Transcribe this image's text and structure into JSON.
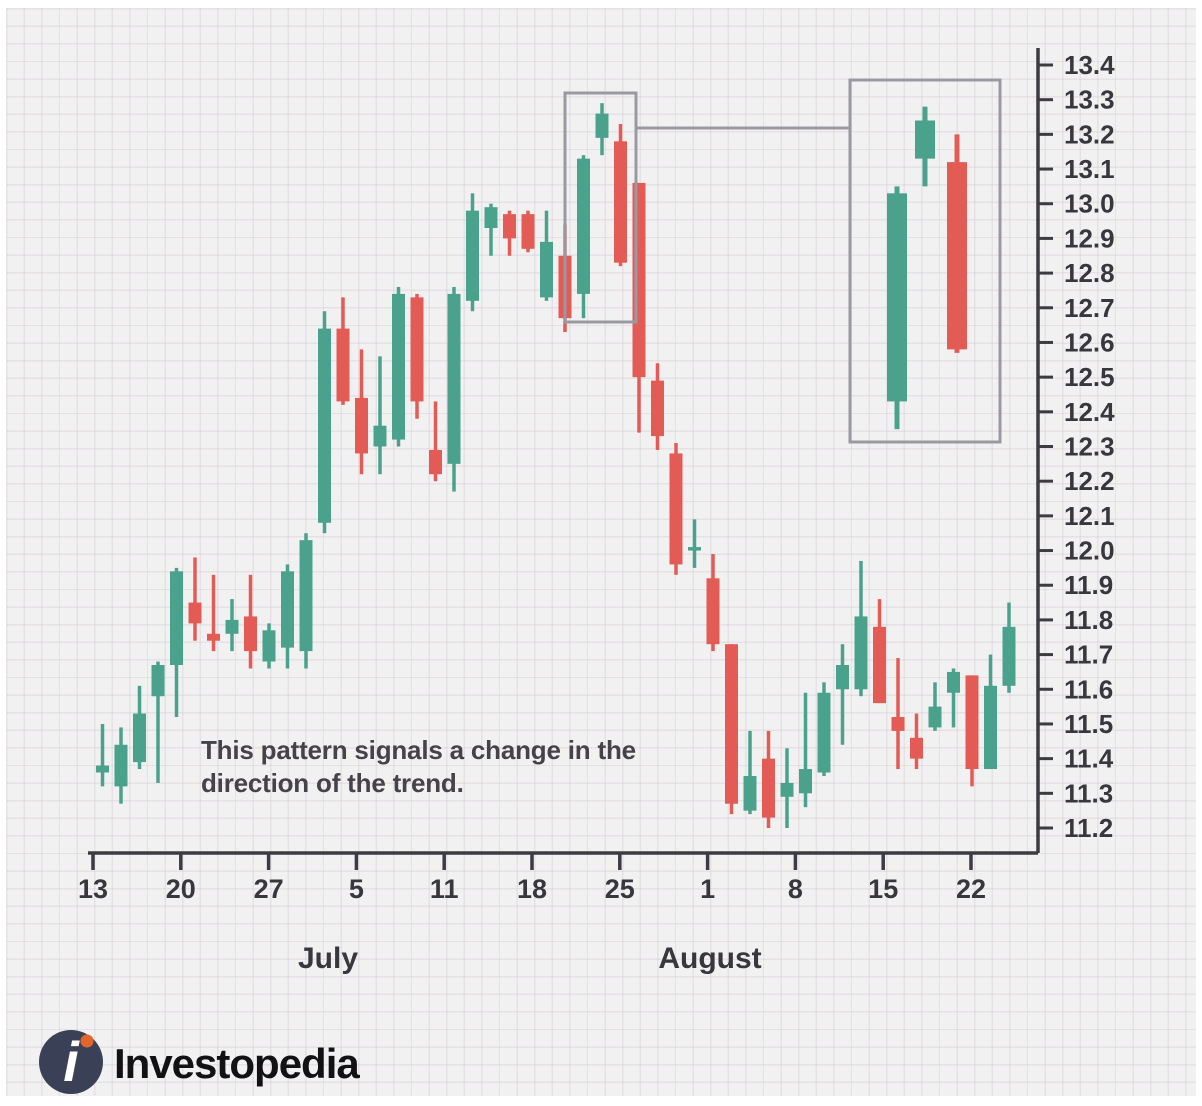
{
  "annotation": {
    "line1": "This pattern signals a change in the",
    "line2": "direction of the trend."
  },
  "logo": {
    "brand": "Investopedia",
    "mark_icon": "investopedia-i-icon",
    "mark_color": "#3a4156",
    "dot_color": "#e2662c"
  },
  "chart_data": {
    "type": "candlestick",
    "up_color": "#4aa28c",
    "down_color": "#e25c55",
    "axis_color": "#3c3b41",
    "highlight_box_color": "#9a99a1",
    "y_axis": {
      "min": 11.2,
      "max": 13.4,
      "step": 0.1,
      "tick_labels": [
        "13.4",
        "13.3",
        "13.2",
        "13.1",
        "13.0",
        "12.9",
        "12.8",
        "12.7",
        "12.6",
        "12.5",
        "12.4",
        "12.3",
        "12.2",
        "12.1",
        "12.0",
        "11.9",
        "11.8",
        "11.7",
        "11.6",
        "11.5",
        "11.4",
        "11.3",
        "11.2"
      ]
    },
    "x_axis": {
      "week_tick_labels": [
        "13",
        "20",
        "27",
        "5",
        "11",
        "18",
        "25",
        "1",
        "8",
        "15",
        "22"
      ],
      "month_labels": [
        "July",
        "August"
      ]
    },
    "candles": [
      {
        "o": 11.36,
        "h": 11.5,
        "l": 11.32,
        "c": 11.38
      },
      {
        "o": 11.32,
        "h": 11.49,
        "l": 11.27,
        "c": 11.44
      },
      {
        "o": 11.39,
        "h": 11.61,
        "l": 11.37,
        "c": 11.53
      },
      {
        "o": 11.58,
        "h": 11.68,
        "l": 11.33,
        "c": 11.67
      },
      {
        "o": 11.67,
        "h": 11.95,
        "l": 11.52,
        "c": 11.94
      },
      {
        "o": 11.85,
        "h": 11.98,
        "l": 11.74,
        "c": 11.79
      },
      {
        "o": 11.76,
        "h": 11.93,
        "l": 11.71,
        "c": 11.74
      },
      {
        "o": 11.76,
        "h": 11.86,
        "l": 11.71,
        "c": 11.8
      },
      {
        "o": 11.81,
        "h": 11.93,
        "l": 11.66,
        "c": 11.71
      },
      {
        "o": 11.68,
        "h": 11.79,
        "l": 11.66,
        "c": 11.77
      },
      {
        "o": 11.72,
        "h": 11.96,
        "l": 11.66,
        "c": 11.94
      },
      {
        "o": 11.71,
        "h": 12.05,
        "l": 11.66,
        "c": 12.03
      },
      {
        "o": 12.08,
        "h": 12.69,
        "l": 12.05,
        "c": 12.64
      },
      {
        "o": 12.64,
        "h": 12.73,
        "l": 12.42,
        "c": 12.43
      },
      {
        "o": 12.44,
        "h": 12.58,
        "l": 12.22,
        "c": 12.28
      },
      {
        "o": 12.3,
        "h": 12.56,
        "l": 12.22,
        "c": 12.36
      },
      {
        "o": 12.32,
        "h": 12.76,
        "l": 12.3,
        "c": 12.74
      },
      {
        "o": 12.73,
        "h": 12.74,
        "l": 12.38,
        "c": 12.43
      },
      {
        "o": 12.29,
        "h": 12.43,
        "l": 12.2,
        "c": 12.22
      },
      {
        "o": 12.25,
        "h": 12.76,
        "l": 12.17,
        "c": 12.74
      },
      {
        "o": 12.72,
        "h": 13.03,
        "l": 12.69,
        "c": 12.98
      },
      {
        "o": 12.93,
        "h": 13.0,
        "l": 12.85,
        "c": 12.99
      },
      {
        "o": 12.97,
        "h": 12.98,
        "l": 12.85,
        "c": 12.9
      },
      {
        "o": 12.97,
        "h": 12.98,
        "l": 12.86,
        "c": 12.87
      },
      {
        "o": 12.73,
        "h": 12.98,
        "l": 12.72,
        "c": 12.89
      },
      {
        "o": 12.85,
        "h": 12.94,
        "l": 12.63,
        "c": 12.67
      },
      {
        "o": 12.74,
        "h": 13.14,
        "l": 12.67,
        "c": 13.13
      },
      {
        "o": 13.19,
        "h": 13.29,
        "l": 13.14,
        "c": 13.26
      },
      {
        "o": 13.18,
        "h": 13.23,
        "l": 12.82,
        "c": 12.83
      },
      {
        "o": 13.06,
        "h": 13.06,
        "l": 12.34,
        "c": 12.5
      },
      {
        "o": 12.49,
        "h": 12.54,
        "l": 12.29,
        "c": 12.33
      },
      {
        "o": 12.28,
        "h": 12.31,
        "l": 11.93,
        "c": 11.96
      },
      {
        "o": 12.0,
        "h": 12.09,
        "l": 11.95,
        "c": 12.01
      },
      {
        "o": 11.92,
        "h": 11.99,
        "l": 11.71,
        "c": 11.73
      },
      {
        "o": 11.73,
        "h": 11.73,
        "l": 11.24,
        "c": 11.27
      },
      {
        "o": 11.25,
        "h": 11.48,
        "l": 11.24,
        "c": 11.35
      },
      {
        "o": 11.4,
        "h": 11.48,
        "l": 11.2,
        "c": 11.23
      },
      {
        "o": 11.29,
        "h": 11.43,
        "l": 11.2,
        "c": 11.33
      },
      {
        "o": 11.3,
        "h": 11.59,
        "l": 11.26,
        "c": 11.37
      },
      {
        "o": 11.36,
        "h": 11.62,
        "l": 11.35,
        "c": 11.59
      },
      {
        "o": 11.6,
        "h": 11.73,
        "l": 11.44,
        "c": 11.67
      },
      {
        "o": 11.6,
        "h": 11.97,
        "l": 11.58,
        "c": 11.81
      },
      {
        "o": 11.78,
        "h": 11.86,
        "l": 11.56,
        "c": 11.56
      },
      {
        "o": 11.52,
        "h": 11.69,
        "l": 11.37,
        "c": 11.48
      },
      {
        "o": 11.46,
        "h": 11.53,
        "l": 11.37,
        "c": 11.4
      },
      {
        "o": 11.49,
        "h": 11.62,
        "l": 11.48,
        "c": 11.55
      },
      {
        "o": 11.59,
        "h": 11.66,
        "l": 11.49,
        "c": 11.65
      },
      {
        "o": 11.64,
        "h": 11.64,
        "l": 11.32,
        "c": 11.37
      },
      {
        "o": 11.37,
        "h": 11.7,
        "l": 11.37,
        "c": 11.61
      },
      {
        "o": 11.61,
        "h": 11.85,
        "l": 11.59,
        "c": 11.78
      }
    ],
    "pattern_highlight": {
      "candle_indices": [
        26,
        27,
        28
      ]
    },
    "inset_zoom_candles": [
      {
        "o": 12.43,
        "h": 13.05,
        "l": 12.35,
        "c": 13.03
      },
      {
        "o": 13.13,
        "h": 13.28,
        "l": 13.05,
        "c": 13.24
      },
      {
        "o": 13.12,
        "h": 13.2,
        "l": 12.57,
        "c": 12.58
      }
    ]
  }
}
